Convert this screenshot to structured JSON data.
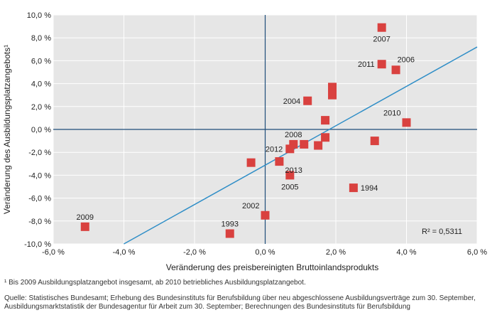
{
  "chart_data": {
    "type": "scatter",
    "xlabel": "Veränderung des preisbereinigten Bruttoinlandsprodukts",
    "ylabel": "Veränderung des Ausbildungsplatzangebots¹",
    "xlim": [
      -6,
      6
    ],
    "ylim": [
      -10,
      10
    ],
    "x_ticks": [
      {
        "value": -6,
        "label": "-6,0 %"
      },
      {
        "value": -4,
        "label": "-4,0 %"
      },
      {
        "value": -2,
        "label": "-2,0 %"
      },
      {
        "value": 0,
        "label": "0,0 %"
      },
      {
        "value": 2,
        "label": "2,0 %"
      },
      {
        "value": 4,
        "label": "4,0 %"
      },
      {
        "value": 6,
        "label": "6,0 %"
      }
    ],
    "y_ticks": [
      {
        "value": 10,
        "label": "10,0 %"
      },
      {
        "value": 8,
        "label": "8,0 %"
      },
      {
        "value": 6,
        "label": "6,0 %"
      },
      {
        "value": 4,
        "label": "4,0 %"
      },
      {
        "value": 2,
        "label": "2,0 %"
      },
      {
        "value": 0,
        "label": "0,0 %"
      },
      {
        "value": -2,
        "label": "-2,0 %"
      },
      {
        "value": -4,
        "label": "-4,0 %"
      },
      {
        "value": -6,
        "label": "-6,0 %"
      },
      {
        "value": -8,
        "label": "-8,0 %"
      },
      {
        "value": -10,
        "label": "-10,0 %"
      }
    ],
    "points": [
      {
        "x": 3.3,
        "y": 8.9,
        "label": "2007",
        "label_pos": "below"
      },
      {
        "x": 3.7,
        "y": 5.2,
        "label": "2006",
        "label_pos": "upper-right"
      },
      {
        "x": 3.3,
        "y": 5.7,
        "label": "2011",
        "label_pos": "left"
      },
      {
        "x": 1.9,
        "y": 3.7,
        "label": "",
        "label_pos": "none"
      },
      {
        "x": 1.9,
        "y": 3.0,
        "label": "",
        "label_pos": "none"
      },
      {
        "x": 1.2,
        "y": 2.5,
        "label": "2004",
        "label_pos": "left"
      },
      {
        "x": 1.7,
        "y": 0.8,
        "label": "",
        "label_pos": "none"
      },
      {
        "x": 4.0,
        "y": 0.6,
        "label": "2010",
        "label_pos": "upper-left"
      },
      {
        "x": 1.7,
        "y": -0.7,
        "label": "",
        "label_pos": "none"
      },
      {
        "x": 0.8,
        "y": -1.3,
        "label": "2008",
        "label_pos": "above"
      },
      {
        "x": 1.1,
        "y": -1.3,
        "label": "",
        "label_pos": "none"
      },
      {
        "x": 1.5,
        "y": -1.4,
        "label": "",
        "label_pos": "none"
      },
      {
        "x": 3.1,
        "y": -1.0,
        "label": "",
        "label_pos": "none"
      },
      {
        "x": 0.7,
        "y": -1.7,
        "label": "2012",
        "label_pos": "left"
      },
      {
        "x": 0.4,
        "y": -2.8,
        "label": "2013",
        "label_pos": "lower-right"
      },
      {
        "x": -0.4,
        "y": -2.9,
        "label": "",
        "label_pos": "none"
      },
      {
        "x": 0.7,
        "y": -4.0,
        "label": "2005",
        "label_pos": "below"
      },
      {
        "x": 2.5,
        "y": -5.1,
        "label": "1994",
        "label_pos": "right"
      },
      {
        "x": 0.0,
        "y": -7.5,
        "label": "2002",
        "label_pos": "upper-left"
      },
      {
        "x": -1.0,
        "y": -9.1,
        "label": "1993",
        "label_pos": "above"
      },
      {
        "x": -5.1,
        "y": -8.5,
        "label": "2009",
        "label_pos": "above"
      }
    ],
    "trendline": {
      "x": [
        -4.0,
        6.0
      ],
      "y": [
        -10.0,
        7.2
      ]
    },
    "r2_label": "R² = 0,5311",
    "colors": {
      "marker": "#d9413f",
      "trend": "#2f8ec7",
      "axis": "#1f4e79",
      "plot_bg": "#e6e6e6",
      "grid": "#ffffff"
    }
  },
  "footnotes": {
    "footnote": "¹ Bis 2009 Ausbildungsplatzangebot insgesamt, ab 2010 betriebliches Ausbildungsplatzangebot.",
    "source": "Quelle: Statistisches Bundesamt; Erhebung des Bundesinstituts für Berufsbildung über neu abgeschlossene Ausbildungsverträge zum 30. September, Ausbildungsmarktstatistik der Bundesagentur für Arbeit zum 30. September; Berechnungen des Bundesinstituts für Berufsbildung"
  }
}
